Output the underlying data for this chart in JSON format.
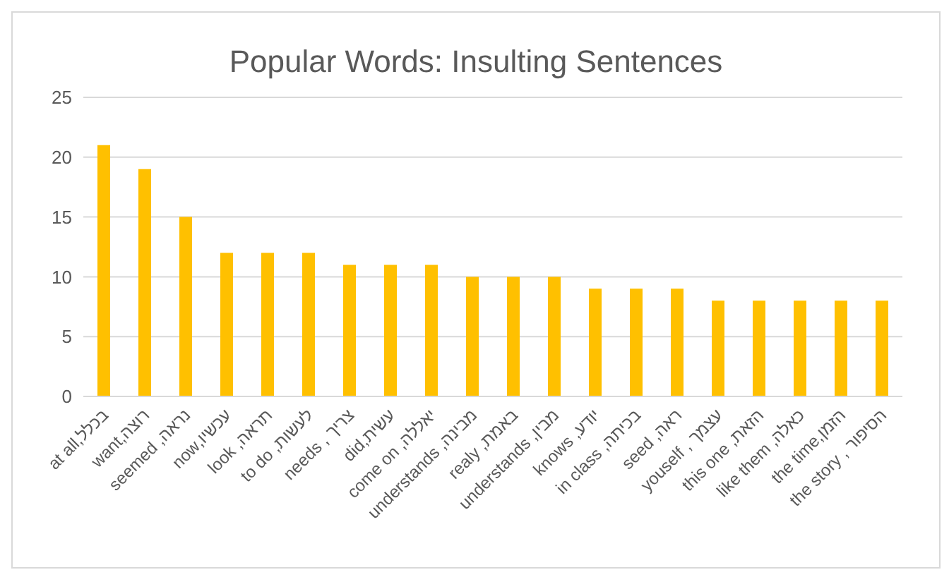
{
  "chart_data": {
    "type": "bar",
    "title": "Popular Words: Insulting Sentences",
    "categories": [
      "בכלל,at all",
      "רוצה,want",
      "נראה, seemed",
      "עכשיו,now",
      "תראה, look",
      "לעשות, to do",
      "צריך , needs",
      "עשית,did",
      "יאללה, come on",
      "מבינה, understands",
      "באמת, realy",
      "מבין, understands",
      "יודע, knows",
      "בכיתה, in class",
      "ראה, seed",
      "עצמך , youself",
      "הזאת, this one",
      "כאלה, like them",
      "הזמן,the time",
      "הסיפור , the story"
    ],
    "values": [
      21,
      19,
      15,
      12,
      12,
      12,
      11,
      11,
      11,
      10,
      10,
      10,
      9,
      9,
      9,
      8,
      8,
      8,
      8,
      8
    ],
    "color": "#ffc000",
    "ylim": [
      0,
      25
    ],
    "yticks": [
      0,
      5,
      10,
      15,
      20,
      25
    ],
    "grid": "y"
  }
}
